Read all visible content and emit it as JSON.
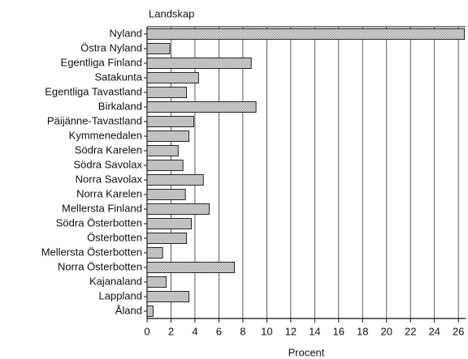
{
  "chart_data": {
    "type": "barh",
    "y_label": "Landskap",
    "x_label": "Procent",
    "categories": [
      "Nyland",
      "Östra Nyland",
      "Egentliga Finland",
      "Satakunta",
      "Egentliga Tavastland",
      "Birkaland",
      "Päijänne-Tavastland",
      "Kymmenedalen",
      "Södra Karelen",
      "Södra Savolax",
      "Norra Savolax",
      "Norra Karelen",
      "Mellersta Finland",
      "Södra Österbotten",
      "Österbotten",
      "Mellersta Österbotten",
      "Norra Österbotten",
      "Kajanaland",
      "Lappland",
      "Åland"
    ],
    "values": [
      26.5,
      1.9,
      8.7,
      4.3,
      3.3,
      9.1,
      3.9,
      3.5,
      2.6,
      3.0,
      4.7,
      3.2,
      5.2,
      3.7,
      3.3,
      1.3,
      7.3,
      1.6,
      3.5,
      0.5
    ],
    "color": "#c8c8c8",
    "xlim": [
      0,
      26.6
    ],
    "xticks": [
      0,
      2,
      4,
      6,
      8,
      10,
      12,
      14,
      16,
      18,
      20,
      22,
      24,
      26
    ],
    "grid": true
  }
}
